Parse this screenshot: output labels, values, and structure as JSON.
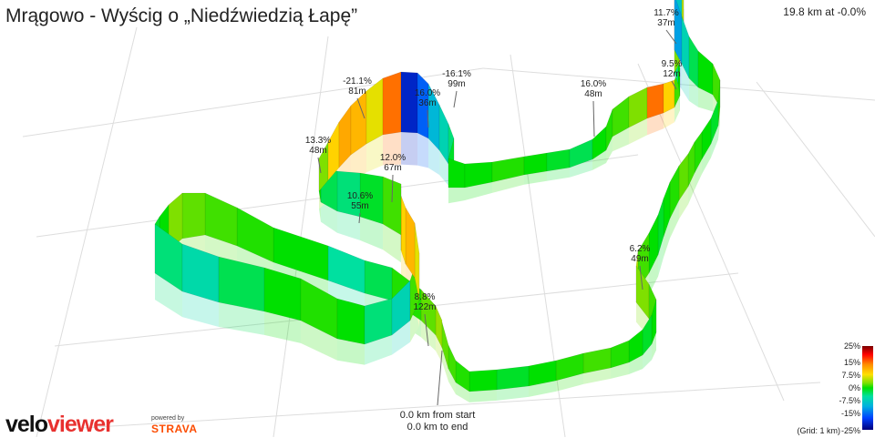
{
  "title": "Mrągowo - Wyścig o „Niedźwiedzią Łapę”",
  "stats": "19.8 km at -0.0%",
  "annotations": [
    {
      "grade": "11.7%",
      "dist": "37m"
    },
    {
      "grade": "9.5%",
      "dist": "12m"
    },
    {
      "grade": "-21.1%",
      "dist": "81m"
    },
    {
      "grade": "-16.1%",
      "dist": "99m"
    },
    {
      "grade": "16.0%",
      "dist": "36m"
    },
    {
      "grade": "16.0%",
      "dist": "48m"
    },
    {
      "grade": "13.3%",
      "dist": "48m"
    },
    {
      "grade": "12.0%",
      "dist": "67m"
    },
    {
      "grade": "10.6%",
      "dist": "55m"
    },
    {
      "grade": "6.2%",
      "dist": "49m"
    },
    {
      "grade": "8.8%",
      "dist": "122m"
    }
  ],
  "start_label": {
    "line1": "0.0 km from start",
    "line2": "0.0 km to end"
  },
  "legend": {
    "ticks": [
      "25%",
      "15%",
      "7.5%",
      "0%",
      "-7.5%",
      "-15%",
      "-25%"
    ],
    "grid_note": "(Grid: 1 km)"
  },
  "branding": {
    "logo_a": "velo",
    "logo_b": "viewer",
    "powered": "powered by",
    "strava": "STRAVA"
  },
  "colors": {
    "accent": "#e8312f",
    "strava": "#fc4c02",
    "route_flat": "#22cc22"
  }
}
